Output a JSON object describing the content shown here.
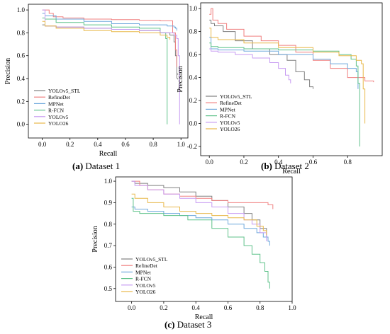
{
  "legend_labels": [
    "YOLOv5_STL",
    "RefineDet",
    "MPNet",
    "R-FCN",
    "YOLOv5",
    "YOLO26"
  ],
  "colors": {
    "YOLOv5_STL": "#808080",
    "RefineDet": "#f08080",
    "MPNet": "#6fa8dc",
    "R-FCN": "#5fc28a",
    "YOLOv5": "#c79bf2",
    "YOLO26": "#e8b84a"
  },
  "panels": [
    {
      "caption_letter": "(a)",
      "caption_text": " Dataset 1"
    },
    {
      "caption_letter": "(b)",
      "caption_text": " Dataset 2"
    },
    {
      "caption_letter": "(c)",
      "caption_text": " Dataset 3"
    }
  ],
  "chart_data": [
    {
      "type": "line",
      "xlabel": "Recall",
      "ylabel": "Precision",
      "xlim": [
        -0.1,
        1.05
      ],
      "ylim": [
        -0.12,
        1.05
      ],
      "xticks": [
        "0.0",
        "0.2",
        "0.4",
        "0.6",
        "0.8",
        "1.0"
      ],
      "yticks": [
        "0.0",
        "0.2",
        "0.4",
        "0.6",
        "0.8",
        "1.0"
      ],
      "legend_placement": "bottom-left",
      "series": [
        {
          "name": "YOLOv5_STL",
          "x": [
            0.0,
            0.02,
            0.1,
            0.3,
            0.5,
            0.7,
            0.85,
            0.92,
            0.95,
            0.96,
            0.97
          ],
          "y": [
            0.87,
            0.86,
            0.85,
            0.84,
            0.83,
            0.82,
            0.8,
            0.78,
            0.72,
            0.6,
            0.4
          ]
        },
        {
          "name": "RefineDet",
          "x": [
            0.0,
            0.02,
            0.05,
            0.08,
            0.15,
            0.3,
            0.5,
            0.7,
            0.85,
            0.94,
            0.94,
            0.96,
            0.97
          ],
          "y": [
            1.0,
            1.0,
            0.97,
            0.94,
            0.93,
            0.92,
            0.915,
            0.91,
            0.905,
            0.9,
            0.8,
            0.65,
            0.5
          ]
        },
        {
          "name": "MPNet",
          "x": [
            0.0,
            0.02,
            0.1,
            0.3,
            0.5,
            0.7,
            0.9,
            0.95,
            0.96,
            0.97
          ],
          "y": [
            0.97,
            0.95,
            0.92,
            0.9,
            0.88,
            0.87,
            0.86,
            0.85,
            0.84,
            0.82
          ]
        },
        {
          "name": "R-FCN",
          "x": [
            0.0,
            0.02,
            0.1,
            0.3,
            0.5,
            0.7,
            0.85,
            0.89,
            0.9,
            0.9
          ],
          "y": [
            0.93,
            0.92,
            0.89,
            0.87,
            0.85,
            0.84,
            0.8,
            0.75,
            0.7,
            0.0
          ]
        },
        {
          "name": "YOLOv5",
          "x": [
            0.0,
            0.02,
            0.1,
            0.3,
            0.5,
            0.7,
            0.85,
            0.95,
            0.97,
            0.98,
            0.99,
            0.99
          ],
          "y": [
            1.0,
            0.86,
            0.85,
            0.84,
            0.83,
            0.82,
            0.8,
            0.78,
            0.75,
            0.6,
            0.3,
            0.0
          ]
        },
        {
          "name": "YOLO26",
          "x": [
            0.0,
            0.02,
            0.1,
            0.3,
            0.5,
            0.7,
            0.85,
            0.9,
            0.92
          ],
          "y": [
            0.9,
            0.86,
            0.84,
            0.82,
            0.81,
            0.8,
            0.78,
            0.76,
            0.74
          ]
        }
      ]
    },
    {
      "type": "line",
      "xlabel": "Recall",
      "ylabel": "Precision",
      "xlim": [
        -0.05,
        1.0
      ],
      "ylim": [
        -0.28,
        1.05
      ],
      "xticks": [
        "0.0",
        "0.2",
        "0.4",
        "0.6",
        "0.8"
      ],
      "yticks": [
        "-0.2",
        "0.0",
        "0.2",
        "0.4",
        "0.6",
        "0.8",
        "1.0"
      ],
      "legend_placement": "bottom-left",
      "series": [
        {
          "name": "YOLOv5_STL",
          "x": [
            0.0,
            0.01,
            0.03,
            0.08,
            0.15,
            0.25,
            0.35,
            0.45,
            0.5,
            0.55,
            0.58,
            0.6
          ],
          "y": [
            0.9,
            0.87,
            0.85,
            0.8,
            0.72,
            0.65,
            0.6,
            0.55,
            0.45,
            0.38,
            0.32,
            0.3
          ]
        },
        {
          "name": "RefineDet",
          "x": [
            0.0,
            0.01,
            0.02,
            0.05,
            0.1,
            0.2,
            0.3,
            0.4,
            0.5,
            0.6,
            0.7,
            0.8,
            0.9,
            0.95
          ],
          "y": [
            0.95,
            1.0,
            0.9,
            0.87,
            0.82,
            0.76,
            0.72,
            0.68,
            0.62,
            0.55,
            0.48,
            0.4,
            0.37,
            0.36
          ]
        },
        {
          "name": "MPNet",
          "x": [
            0.0,
            0.01,
            0.05,
            0.2,
            0.4,
            0.6,
            0.7,
            0.8,
            0.85,
            0.86
          ],
          "y": [
            0.75,
            0.65,
            0.64,
            0.63,
            0.6,
            0.56,
            0.52,
            0.48,
            0.45,
            0.3
          ]
        },
        {
          "name": "R-FCN",
          "x": [
            0.0,
            0.01,
            0.05,
            0.2,
            0.4,
            0.6,
            0.75,
            0.82,
            0.85,
            0.86,
            0.87
          ],
          "y": [
            0.7,
            0.67,
            0.66,
            0.65,
            0.64,
            0.63,
            0.6,
            0.56,
            0.5,
            0.35,
            -0.2
          ]
        },
        {
          "name": "YOLOv5",
          "x": [
            0.0,
            0.01,
            0.05,
            0.15,
            0.25,
            0.35,
            0.4,
            0.44,
            0.46,
            0.47
          ],
          "y": [
            0.65,
            0.63,
            0.62,
            0.6,
            0.57,
            0.53,
            0.48,
            0.42,
            0.38,
            0.35
          ]
        },
        {
          "name": "YOLO26",
          "x": [
            0.0,
            0.01,
            0.05,
            0.2,
            0.4,
            0.6,
            0.75,
            0.85,
            0.88,
            0.89,
            0.9
          ],
          "y": [
            0.83,
            0.75,
            0.73,
            0.7,
            0.66,
            0.62,
            0.59,
            0.55,
            0.52,
            0.3,
            0.0
          ]
        }
      ]
    },
    {
      "type": "line",
      "xlabel": "Recall",
      "ylabel": "Precision",
      "xlim": [
        -0.1,
        1.0
      ],
      "ylim": [
        0.44,
        1.02
      ],
      "xticks": [
        "0.0",
        "0.2",
        "0.4",
        "0.6",
        "0.8",
        "1.0"
      ],
      "yticks": [
        "0.5",
        "0.6",
        "0.7",
        "0.8",
        "0.9",
        "1.0"
      ],
      "legend_placement": "bottom-left",
      "series": [
        {
          "name": "YOLOv5_STL",
          "x": [
            0.0,
            0.02,
            0.1,
            0.2,
            0.3,
            0.4,
            0.5,
            0.6,
            0.7,
            0.75,
            0.8,
            0.84
          ],
          "y": [
            1.0,
            0.99,
            0.98,
            0.97,
            0.95,
            0.93,
            0.91,
            0.88,
            0.85,
            0.82,
            0.78,
            0.74
          ]
        },
        {
          "name": "RefineDet",
          "x": [
            0.0,
            0.05,
            0.1,
            0.2,
            0.3,
            0.4,
            0.5,
            0.6,
            0.7,
            0.8,
            0.85,
            0.88,
            0.88
          ],
          "y": [
            1.0,
            0.98,
            0.96,
            0.94,
            0.93,
            0.92,
            0.91,
            0.9,
            0.9,
            0.9,
            0.89,
            0.89,
            0.87
          ]
        },
        {
          "name": "MPNet",
          "x": [
            0.0,
            0.02,
            0.1,
            0.2,
            0.3,
            0.4,
            0.5,
            0.6,
            0.7,
            0.78,
            0.82,
            0.85,
            0.86
          ],
          "y": [
            0.88,
            0.87,
            0.86,
            0.85,
            0.84,
            0.83,
            0.82,
            0.8,
            0.78,
            0.76,
            0.74,
            0.72,
            0.7
          ]
        },
        {
          "name": "R-FCN",
          "x": [
            0.0,
            0.01,
            0.05,
            0.2,
            0.35,
            0.5,
            0.6,
            0.7,
            0.75,
            0.8,
            0.83,
            0.85,
            0.86
          ],
          "y": [
            0.92,
            0.86,
            0.85,
            0.84,
            0.82,
            0.78,
            0.74,
            0.7,
            0.66,
            0.62,
            0.58,
            0.53,
            0.5
          ]
        },
        {
          "name": "YOLOv5",
          "x": [
            0.0,
            0.02,
            0.1,
            0.2,
            0.3,
            0.4,
            0.5,
            0.6,
            0.7,
            0.75,
            0.8,
            0.84
          ],
          "y": [
            1.0,
            0.98,
            0.96,
            0.94,
            0.92,
            0.9,
            0.88,
            0.85,
            0.82,
            0.8,
            0.76,
            0.72
          ]
        },
        {
          "name": "YOLO26",
          "x": [
            0.0,
            0.02,
            0.1,
            0.2,
            0.3,
            0.4,
            0.5,
            0.6,
            0.7,
            0.78,
            0.82,
            0.84
          ],
          "y": [
            0.94,
            0.92,
            0.9,
            0.88,
            0.86,
            0.85,
            0.84,
            0.83,
            0.82,
            0.79,
            0.77,
            0.75
          ]
        }
      ]
    }
  ]
}
